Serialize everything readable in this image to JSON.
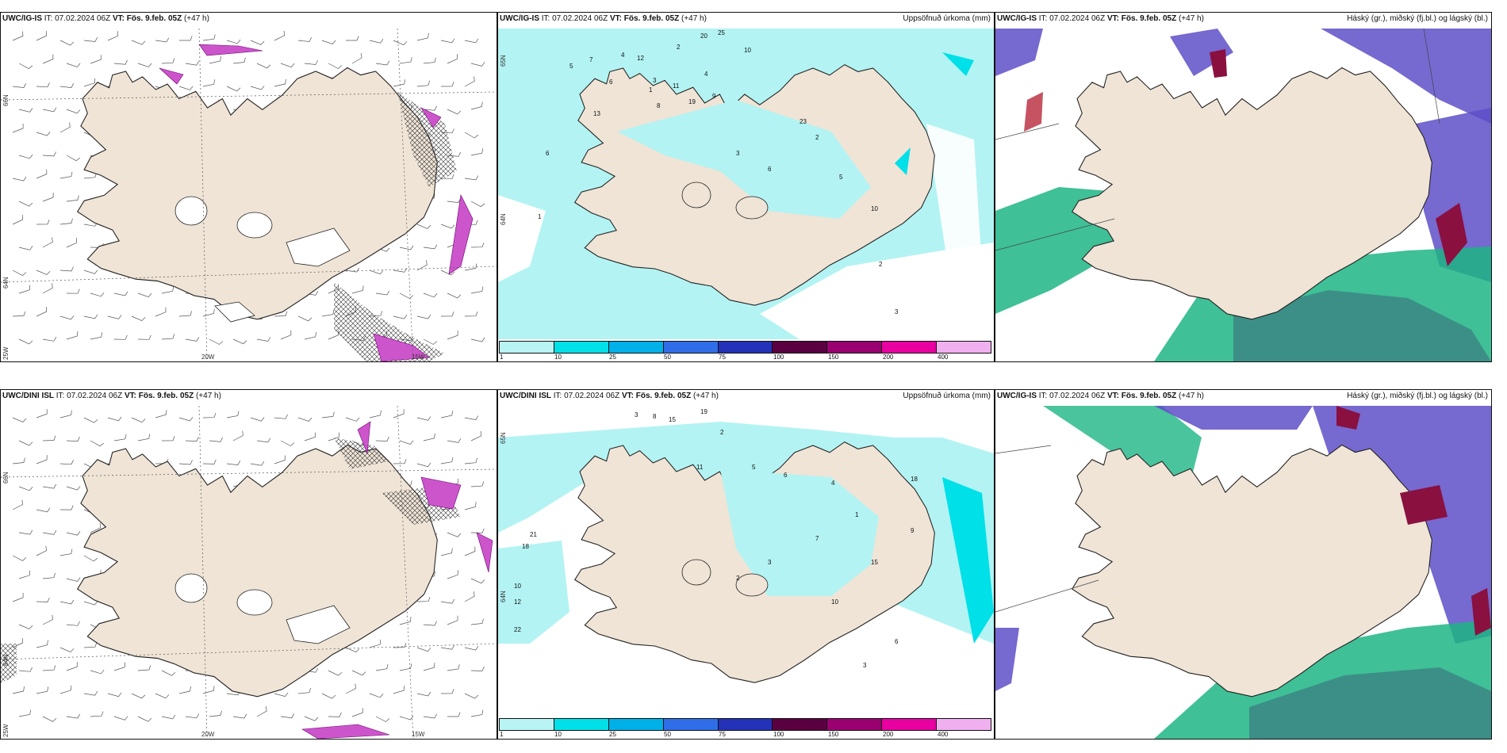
{
  "panels": [
    {
      "id": "top-left",
      "title_model": "UWC/IG-IS",
      "title_it": " IT: 07.02.2024 06Z ",
      "title_vt_label": "VT:",
      "title_vt": " Fös. 9.feb. 05Z",
      "title_lead": " (+47 h)",
      "right_title": "",
      "axis_labels": [
        "66N",
        "64N",
        "25W",
        "20W",
        "15W"
      ],
      "numbers": []
    },
    {
      "id": "top-middle",
      "title_model": "UWC/IG-IS",
      "title_it": " IT: 07.02.2024 06Z ",
      "title_vt_label": "VT:",
      "title_vt": " Fös. 9.feb. 05Z",
      "title_lead": " (+47 h)",
      "right_title": "Uppsöfnuð úrkoma (mm)",
      "axis_labels": [
        "65N",
        "64N"
      ],
      "numbers": [
        "20",
        "25",
        "2",
        "10",
        "7",
        "5",
        "6",
        "12",
        "3",
        "4",
        "8",
        "13",
        "1",
        "9",
        "11",
        "19",
        "23",
        "2",
        "3",
        "6",
        "5",
        "10",
        "2",
        "3",
        "4",
        "6",
        "1"
      ]
    },
    {
      "id": "top-right",
      "title_model": "UWC/IG-IS",
      "title_it": " IT: 07.02.2024 06Z ",
      "title_vt_label": "VT:",
      "title_vt": " Fös. 9.feb. 05Z",
      "title_lead": " (+47 h)",
      "right_title": "Háský (gr.), miðský (fj.bl.) og lágský (bl.)",
      "axis_labels": [],
      "numbers": []
    },
    {
      "id": "bottom-left",
      "title_model": "UWC/DINI ISL",
      "title_it": " IT: 07.02.2024 06Z ",
      "title_vt_label": "VT:",
      "title_vt": " Fös. 9.feb. 05Z",
      "title_lead": " (+47 h)",
      "right_title": "",
      "axis_labels": [
        "66N",
        "64N",
        "25W",
        "20W",
        "15W"
      ],
      "numbers": []
    },
    {
      "id": "bottom-middle",
      "title_model": "UWC/DINI ISL",
      "title_it": " IT: 07.02.2024 06Z ",
      "title_vt_label": "VT:",
      "title_vt": " Fös. 9.feb. 05Z",
      "title_lead": " (+47 h)",
      "right_title": "Uppsöfnuð úrkoma (mm)",
      "axis_labels": [
        "65N",
        "64N"
      ],
      "numbers": [
        "3",
        "8",
        "15",
        "19",
        "2",
        "21",
        "18",
        "10",
        "12",
        "22",
        "11",
        "5",
        "6",
        "4",
        "1",
        "9",
        "7",
        "3",
        "2",
        "10",
        "6",
        "3",
        "15",
        "18"
      ]
    },
    {
      "id": "bottom-right",
      "title_model": "UWC/IG-IS",
      "title_it": " IT: 07.02.2024 06Z ",
      "title_vt_label": "VT:",
      "title_vt": " Fös. 9.feb. 05Z",
      "title_lead": " (+47 h)",
      "right_title": "Háský (gr.), miðský (fj.bl.) og lágský (bl.)",
      "axis_labels": [],
      "numbers": []
    }
  ],
  "colorbar": {
    "labels": [
      "1",
      "10",
      "25",
      "50",
      "75",
      "100",
      "150",
      "200",
      "400"
    ],
    "colors": [
      "#b8f4f4",
      "#00e0e8",
      "#00b0e8",
      "#2f6ee8",
      "#2332b8",
      "#5a0040",
      "#9a0070",
      "#e800a0",
      "#f0b0f0"
    ]
  },
  "colors": {
    "land": "#efe4d6",
    "sea_precip": "#b3f3f3",
    "magenta_precip": "#cc55cc",
    "high_cloud": "#5e4fc8",
    "mid_cloud": "#1db584",
    "low_cloud_dark": "#8a1040"
  }
}
